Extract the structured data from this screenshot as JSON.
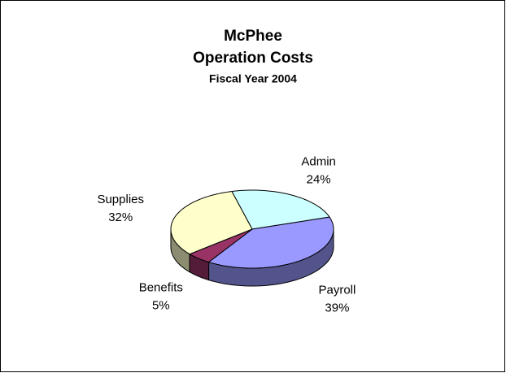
{
  "chart_data": {
    "type": "pie",
    "title": [
      "McPhee",
      "Operation Costs"
    ],
    "subtitle": "Fiscal Year 2004",
    "categories": [
      "Admin",
      "Payroll",
      "Benefits",
      "Supplies"
    ],
    "values": [
      24,
      39,
      5,
      32
    ],
    "value_labels": [
      "24%",
      "39%",
      "5%",
      "32%"
    ],
    "colors": [
      "#ccffff",
      "#9999ff",
      "#993366",
      "#ffffcc"
    ]
  }
}
